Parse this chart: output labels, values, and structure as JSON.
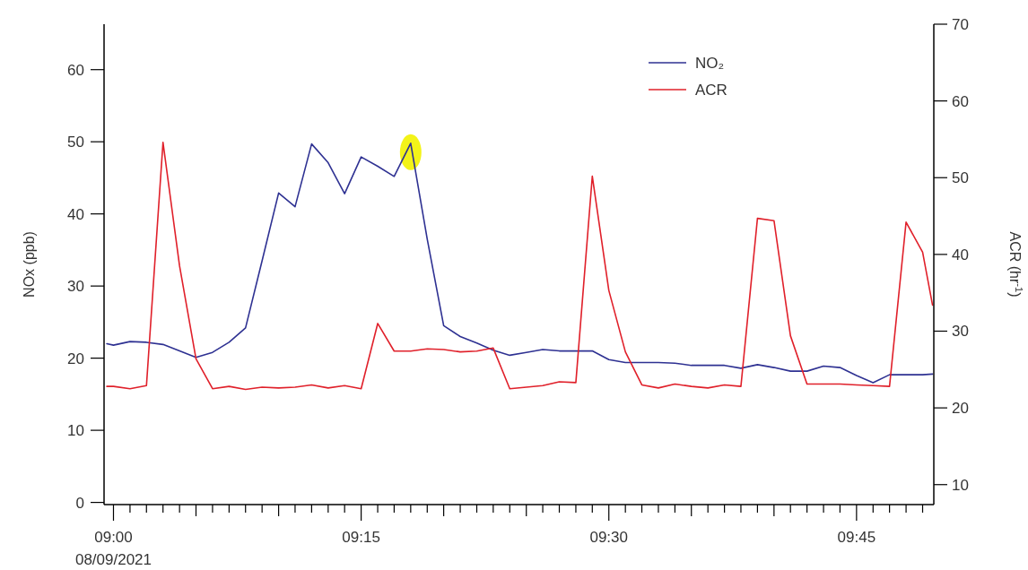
{
  "chart_data": {
    "type": "line",
    "xlabel": null,
    "ylabel": "NOx (ppb)",
    "y2label": "ACR (hr$^{-1}$)",
    "x": [
      8.9933,
      9,
      9.0167,
      9.0333,
      9.05,
      9.0667,
      9.0833,
      9.1,
      9.1167,
      9.1333,
      9.15,
      9.1667,
      9.1833,
      9.2,
      9.2167,
      9.2333,
      9.25,
      9.2667,
      9.2833,
      9.3,
      9.3167,
      9.3333,
      9.35,
      9.3667,
      9.3833,
      9.4,
      9.4167,
      9.4333,
      9.45,
      9.4667,
      9.4833,
      9.5,
      9.5167,
      9.5333,
      9.55,
      9.5667,
      9.5833,
      9.6,
      9.6167,
      9.6333,
      9.65,
      9.6667,
      9.6833,
      9.7,
      9.7167,
      9.7333,
      9.75,
      9.7667,
      9.7833,
      9.8,
      9.8167,
      9.8267
    ],
    "series": [
      {
        "name": "NO₂",
        "color": "#2e3192",
        "values": [
          22.0,
          21.8,
          22.3,
          22.2,
          21.9,
          21.0,
          20.1,
          20.8,
          22.2,
          24.2,
          33.5,
          42.9,
          41.0,
          49.7,
          47.1,
          42.8,
          47.9,
          46.6,
          45.2,
          49.8,
          36.5,
          24.5,
          23.0,
          22.1,
          21.1,
          20.4,
          20.8,
          21.2,
          21.0,
          21.0,
          21.0,
          19.8,
          19.4,
          19.4,
          19.4,
          19.3,
          19.0,
          19.0,
          19.0,
          18.6,
          19.1,
          18.7,
          18.2,
          18.2,
          18.9,
          18.7,
          17.6,
          16.6,
          17.7,
          17.7,
          17.7,
          17.8
        ]
      },
      {
        "name": "ACR",
        "color": "#e0202a",
        "axis": "y2",
        "values": [
          22.8,
          22.8,
          22.5,
          22.9,
          54.6,
          38.5,
          26.4,
          22.5,
          22.8,
          22.4,
          22.7,
          22.6,
          22.7,
          23.0,
          22.6,
          22.9,
          22.5,
          31.0,
          27.4,
          27.4,
          27.7,
          27.6,
          27.3,
          27.4,
          27.8,
          22.5,
          22.7,
          22.9,
          23.4,
          23.3,
          50.2,
          35.3,
          27.3,
          23.0,
          22.6,
          23.1,
          22.8,
          22.6,
          23.0,
          22.8,
          44.7,
          44.4,
          29.4,
          23.1,
          23.1,
          23.1,
          23.0,
          22.9,
          22.8,
          44.2,
          40.3,
          33.4
        ]
      }
    ],
    "xlim": [
      8.9905,
      9.828
    ],
    "xticks": [
      {
        "value": 9,
        "label": "09:00\n08/09/2021"
      },
      {
        "value": 9.0167,
        "label": null
      },
      {
        "value": 9.0333,
        "label": null
      },
      {
        "value": 9.05,
        "label": null
      },
      {
        "value": 9.0667,
        "label": null
      },
      {
        "value": 9.0833,
        "label": null
      },
      {
        "value": 9.1,
        "label": null
      },
      {
        "value": 9.1167,
        "label": null
      },
      {
        "value": 9.1333,
        "label": null
      },
      {
        "value": 9.15,
        "label": null
      },
      {
        "value": 9.1667,
        "label": null
      },
      {
        "value": 9.1833,
        "label": null
      },
      {
        "value": 9.2,
        "label": null
      },
      {
        "value": 9.2167,
        "label": null
      },
      {
        "value": 9.2333,
        "label": null
      },
      {
        "value": 9.25,
        "label": "09:15"
      },
      {
        "value": 9.2667,
        "label": null
      },
      {
        "value": 9.2833,
        "label": null
      },
      {
        "value": 9.3,
        "label": null
      },
      {
        "value": 9.3167,
        "label": null
      },
      {
        "value": 9.3333,
        "label": null
      },
      {
        "value": 9.35,
        "label": null
      },
      {
        "value": 9.3667,
        "label": null
      },
      {
        "value": 9.3833,
        "label": null
      },
      {
        "value": 9.4,
        "label": null
      },
      {
        "value": 9.4167,
        "label": null
      },
      {
        "value": 9.4333,
        "label": null
      },
      {
        "value": 9.45,
        "label": null
      },
      {
        "value": 9.4667,
        "label": null
      },
      {
        "value": 9.4833,
        "label": null
      },
      {
        "value": 9.5,
        "label": "09:30"
      },
      {
        "value": 9.5167,
        "label": null
      },
      {
        "value": 9.5333,
        "label": null
      },
      {
        "value": 9.55,
        "label": null
      },
      {
        "value": 9.5667,
        "label": null
      },
      {
        "value": 9.5833,
        "label": null
      },
      {
        "value": 9.6,
        "label": null
      },
      {
        "value": 9.6167,
        "label": null
      },
      {
        "value": 9.6333,
        "label": null
      },
      {
        "value": 9.65,
        "label": null
      },
      {
        "value": 9.6667,
        "label": null
      },
      {
        "value": 9.6833,
        "label": null
      },
      {
        "value": 9.7,
        "label": null
      },
      {
        "value": 9.7167,
        "label": null
      },
      {
        "value": 9.7333,
        "label": null
      },
      {
        "value": 9.75,
        "label": "09:45"
      },
      {
        "value": 9.7667,
        "label": null
      },
      {
        "value": 9.7833,
        "label": null
      },
      {
        "value": 9.8,
        "label": null
      },
      {
        "value": 9.8167,
        "label": null
      }
    ],
    "ylim": [
      -0.3,
      66.3
    ],
    "yticks": [
      0,
      10,
      20,
      30,
      40,
      50,
      60
    ],
    "y2lim": [
      7.4,
      70
    ],
    "y2ticks": [
      10,
      20,
      30,
      40,
      50,
      60,
      70
    ],
    "legend": "top right",
    "grid": false,
    "line_style": "solid",
    "marker": "none"
  }
}
